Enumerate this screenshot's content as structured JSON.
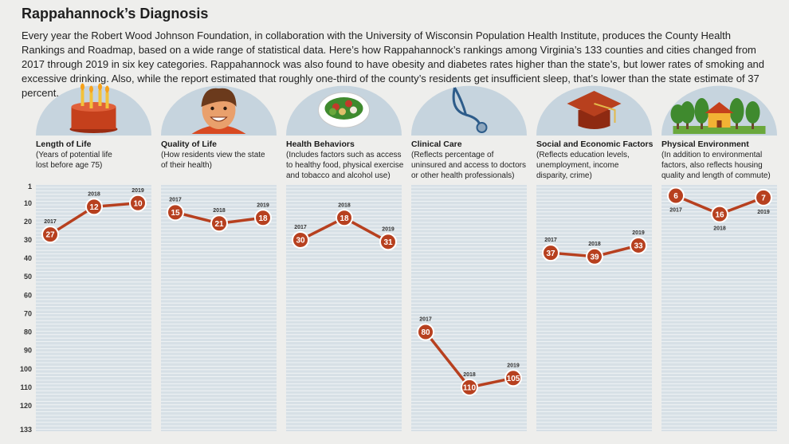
{
  "header": {
    "title": "Rappahannock’s Diagnosis",
    "intro": "Every year the Robert Wood Johnson Foundation, in collaboration with the University of Wisconsin Population Health Institute, produces the County Health Rankings and Roadmap, based on a wide range of statistical data. Here’s how Rappahannock’s rankings among Virginia’s 133 counties and cities changed from 2017 through 2019 in six key categories. Rappahannock was also found to have obesity and diabetes rates higher than the state’s, but lower rates of smoking and excessive drinking. Also, while the report estimated that roughly one-third of the county’s residents get insufficient sleep, that’s lower than the state estimate of 37 percent."
  },
  "colors": {
    "line": "#b7401f",
    "marker_fill": "#b7401f",
    "marker_ring": "#ffffff",
    "panel_bg": "#d7e0e6",
    "panel_lines": "#ffffff",
    "arch": "#c6d4de"
  },
  "chart_data": {
    "type": "line",
    "y_axis": {
      "ticks": [
        1,
        10,
        20,
        30,
        40,
        50,
        60,
        70,
        80,
        90,
        100,
        110,
        120,
        133
      ],
      "ylim": [
        1,
        133
      ],
      "inverted": true
    },
    "x": [
      "2017",
      "2018",
      "2019"
    ],
    "panels": [
      {
        "title": "Length of Life",
        "description": [
          "(Years of potential life",
          "lost before age 75)"
        ],
        "icon": "birthday-cake-icon",
        "values": [
          27,
          12,
          10
        ]
      },
      {
        "title": "Quality of Life",
        "description": [
          "(How residents view the state",
          "of their health)"
        ],
        "icon": "smiling-face-icon",
        "values": [
          15,
          21,
          18
        ]
      },
      {
        "title": "Health Behaviors",
        "description": [
          "(Includes factors such as access",
          "to healthy food, physical exercise",
          "and tobacco and alcohol use)"
        ],
        "icon": "salad-plate-icon",
        "values": [
          30,
          18,
          31
        ]
      },
      {
        "title": "Clinical Care",
        "description": [
          "(Reflects percentage of",
          "uninsured and access to doctors",
          "or other health professionals)"
        ],
        "icon": "stethoscope-icon",
        "values": [
          80,
          110,
          105
        ]
      },
      {
        "title": "Social and Economic Factors",
        "description": [
          "(Reflects education levels,",
          "unemployment, income",
          "disparity, crime)"
        ],
        "icon": "graduation-cap-icon",
        "values": [
          37,
          39,
          33
        ]
      },
      {
        "title": "Physical Environment",
        "description": [
          "(In addition to environmental",
          "factors, also reflects housing",
          "quality and length of commute)"
        ],
        "icon": "house-trees-icon",
        "values": [
          6,
          16,
          7
        ]
      }
    ]
  }
}
